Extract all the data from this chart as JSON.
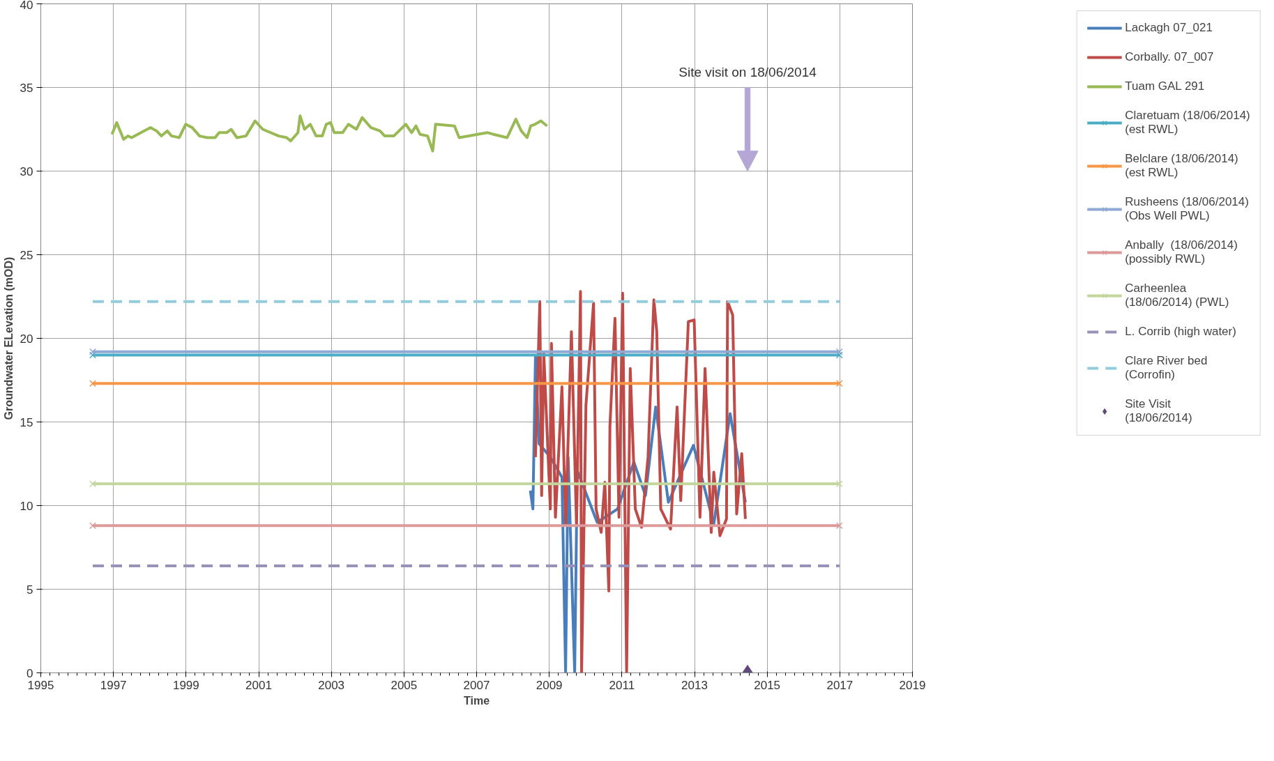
{
  "chart_data": {
    "type": "line",
    "xlabel": "Time",
    "ylabel": "Groundwater ELevation (mOD)",
    "xlim": [
      1995,
      2019
    ],
    "xticks": [
      1995,
      1997,
      1999,
      2001,
      2003,
      2005,
      2007,
      2009,
      2011,
      2013,
      2015,
      2017,
      2019
    ],
    "ylim": [
      0,
      40
    ],
    "yticks": [
      0,
      5,
      10,
      15,
      20,
      25,
      30,
      35,
      40
    ],
    "grid": true,
    "legend": "right",
    "annotations": [
      "Site visit on 18/06/2014"
    ],
    "series": [
      {
        "name": "Lackagh 07_021",
        "color": "#4a7ebb",
        "x": [
          2008.48,
          2008.55,
          2008.62,
          2008.72,
          2009.03,
          2009.35,
          2009.45,
          2009.52,
          2009.7,
          2009.77,
          2010.32,
          2010.88,
          2011.33,
          2011.65,
          2011.93,
          2012.28,
          2012.97,
          2013.53,
          2013.98,
          2014.09,
          2014.4
        ],
        "values": [
          10.9,
          9.8,
          18.9,
          13.7,
          12.9,
          11.7,
          0,
          12.9,
          0,
          12.1,
          9.0,
          9.8,
          12.6,
          10.6,
          15.9,
          10.2,
          13.6,
          8.9,
          15.5,
          14.1,
          10.2
        ]
      },
      {
        "name": "Corbally. 07_007",
        "color": "#be4b48",
        "x": [
          2008.62,
          2008.74,
          2008.79,
          2008.85,
          2009.03,
          2009.06,
          2009.17,
          2009.35,
          2009.45,
          2009.61,
          2009.75,
          2009.86,
          2009.89,
          2010.01,
          2010.22,
          2010.29,
          2010.43,
          2010.53,
          2010.64,
          2010.67,
          2010.81,
          2010.92,
          2011.02,
          2011.13,
          2011.23,
          2011.37,
          2011.54,
          2011.72,
          2011.88,
          2011.96,
          2012.07,
          2012.34,
          2012.52,
          2012.62,
          2012.83,
          2012.99,
          2013.15,
          2013.29,
          2013.46,
          2013.53,
          2013.7,
          2013.88,
          2013.91,
          2014.05,
          2014.16,
          2014.3,
          2014.4
        ],
        "values": [
          12.9,
          22.2,
          10.6,
          19.1,
          9.8,
          19.7,
          9.3,
          17.1,
          8.9,
          20.4,
          8.9,
          22.8,
          0,
          16.0,
          22.1,
          9.8,
          8.4,
          11.4,
          4.9,
          14.7,
          21.2,
          9.3,
          22.7,
          0,
          18.2,
          9.8,
          8.7,
          12.9,
          22.3,
          20.4,
          9.8,
          8.6,
          15.9,
          10.3,
          21.0,
          21.1,
          9.3,
          18.2,
          8.4,
          12.0,
          8.2,
          9.2,
          22.2,
          21.4,
          9.5,
          13.1,
          9.2
        ]
      },
      {
        "name": "Tuam GAL 291",
        "color": "#98b954",
        "x": [
          1996.96,
          1997.09,
          1997.28,
          1997.4,
          1997.5,
          1998.02,
          1998.19,
          1998.32,
          1998.48,
          1998.6,
          1998.81,
          1998.99,
          1999.17,
          1999.37,
          1999.58,
          1999.8,
          1999.91,
          2000.12,
          2000.24,
          2000.4,
          2000.65,
          2000.9,
          2001.11,
          2001.55,
          2001.77,
          2001.88,
          2002.08,
          2002.14,
          2002.26,
          2002.42,
          2002.58,
          2002.75,
          2002.86,
          2002.98,
          2003.08,
          2003.31,
          2003.47,
          2003.69,
          2003.85,
          2004.09,
          2004.34,
          2004.47,
          2004.72,
          2005.05,
          2005.21,
          2005.33,
          2005.44,
          2005.65,
          2005.79,
          2005.87,
          2006.39,
          2006.52,
          2007.3,
          2007.46,
          2007.84,
          2008.08,
          2008.23,
          2008.39,
          2008.49,
          2008.61,
          2008.77,
          2008.94
        ],
        "values": [
          32.2,
          32.9,
          31.9,
          32.1,
          32.0,
          32.6,
          32.4,
          32.1,
          32.4,
          32.1,
          32.0,
          32.8,
          32.6,
          32.1,
          32.0,
          32.0,
          32.3,
          32.3,
          32.5,
          32.0,
          32.1,
          33.0,
          32.5,
          32.1,
          32.0,
          31.8,
          32.3,
          33.3,
          32.5,
          32.8,
          32.1,
          32.1,
          32.8,
          32.9,
          32.3,
          32.3,
          32.8,
          32.5,
          33.2,
          32.6,
          32.4,
          32.1,
          32.1,
          32.8,
          32.3,
          32.7,
          32.2,
          32.1,
          31.2,
          32.8,
          32.7,
          32.0,
          32.3,
          32.2,
          32.0,
          33.1,
          32.4,
          32.0,
          32.7,
          32.8,
          33.0,
          32.7
        ]
      },
      {
        "name": "Claretuam (18/06/2014) (est RWL)",
        "color": "#4bacc6",
        "marker": "cross",
        "x": [
          1996.43,
          2016.99
        ],
        "values": [
          19.0,
          19.0
        ]
      },
      {
        "name": "Belclare (18/06/2014) (est RWL)",
        "color": "#f79646",
        "marker": "cross",
        "x": [
          1996.43,
          2016.99
        ],
        "values": [
          17.3,
          17.3
        ]
      },
      {
        "name": "Rusheens (18/06/2014) (Obs Well PWL)",
        "color": "#8fa9d4",
        "marker": "cross",
        "x": [
          1996.43,
          2016.99
        ],
        "values": [
          19.2,
          19.2
        ]
      },
      {
        "name": "Anbally  (18/06/2014) (possibly RWL)",
        "color": "#dc9a9a",
        "marker": "cross",
        "x": [
          1996.43,
          2016.99
        ],
        "values": [
          8.8,
          8.8
        ]
      },
      {
        "name": "Carheenlea (18/06/2014) (PWL)",
        "color": "#c3d69b",
        "marker": "cross",
        "x": [
          1996.43,
          2016.99
        ],
        "values": [
          11.3,
          11.3
        ]
      },
      {
        "name": "L. Corrib (high water)",
        "color": "#9991b8",
        "line_style": "dashed",
        "x": [
          1996.43,
          2016.99
        ],
        "values": [
          6.4,
          6.4
        ]
      },
      {
        "name": "Clare River bed (Corrofin)",
        "color": "#93cddd",
        "line_style": "dashed",
        "x": [
          1996.43,
          2016.99
        ],
        "values": [
          22.2,
          22.2
        ]
      },
      {
        "name": "Site Visit (18/06/2014)",
        "type": "scatter",
        "marker": "diamond",
        "color": "#604a7b",
        "x": [
          2014.46
        ],
        "values": [
          0
        ]
      }
    ]
  }
}
